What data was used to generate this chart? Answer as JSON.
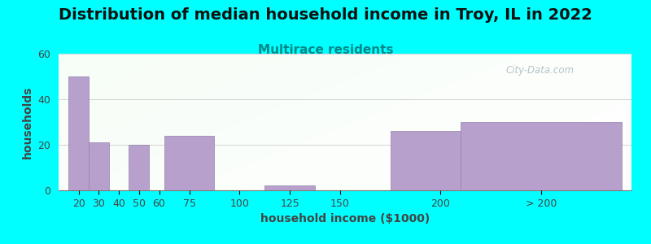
{
  "title": "Distribution of median household income in Troy, IL in 2022",
  "subtitle": "Multirace residents",
  "xlabel": "household income ($1000)",
  "ylabel": "households",
  "background_color": "#00FFFF",
  "bar_color": "#b8a0cc",
  "bar_edge_color": "#9080aa",
  "categories": [
    "20",
    "30",
    "40",
    "50",
    "60",
    "75",
    "100",
    "125",
    "150",
    "200",
    "> 200"
  ],
  "bar_positions": [
    20,
    30,
    40,
    50,
    60,
    75,
    100,
    125,
    150,
    200,
    250
  ],
  "bar_widths": [
    10,
    10,
    10,
    10,
    15,
    25,
    25,
    25,
    50,
    50,
    80
  ],
  "values": [
    50,
    21,
    0,
    20,
    0,
    24,
    0,
    2,
    0,
    26,
    30
  ],
  "ylim": [
    0,
    60
  ],
  "yticks": [
    0,
    20,
    40,
    60
  ],
  "xlim_min": 10,
  "xlim_max": 295,
  "title_fontsize": 14,
  "subtitle_fontsize": 11,
  "subtitle_color": "#008888",
  "axis_label_fontsize": 10,
  "tick_fontsize": 9,
  "watermark_text": "City-Data.com",
  "watermark_color": "#aab8c0",
  "tick_positions": [
    20,
    30,
    40,
    50,
    60,
    75,
    100,
    125,
    150,
    200,
    250
  ],
  "tick_labels": [
    "20",
    "30",
    "40",
    "50",
    "60",
    "75",
    "100",
    "125",
    "150",
    "200",
    "> 200"
  ]
}
